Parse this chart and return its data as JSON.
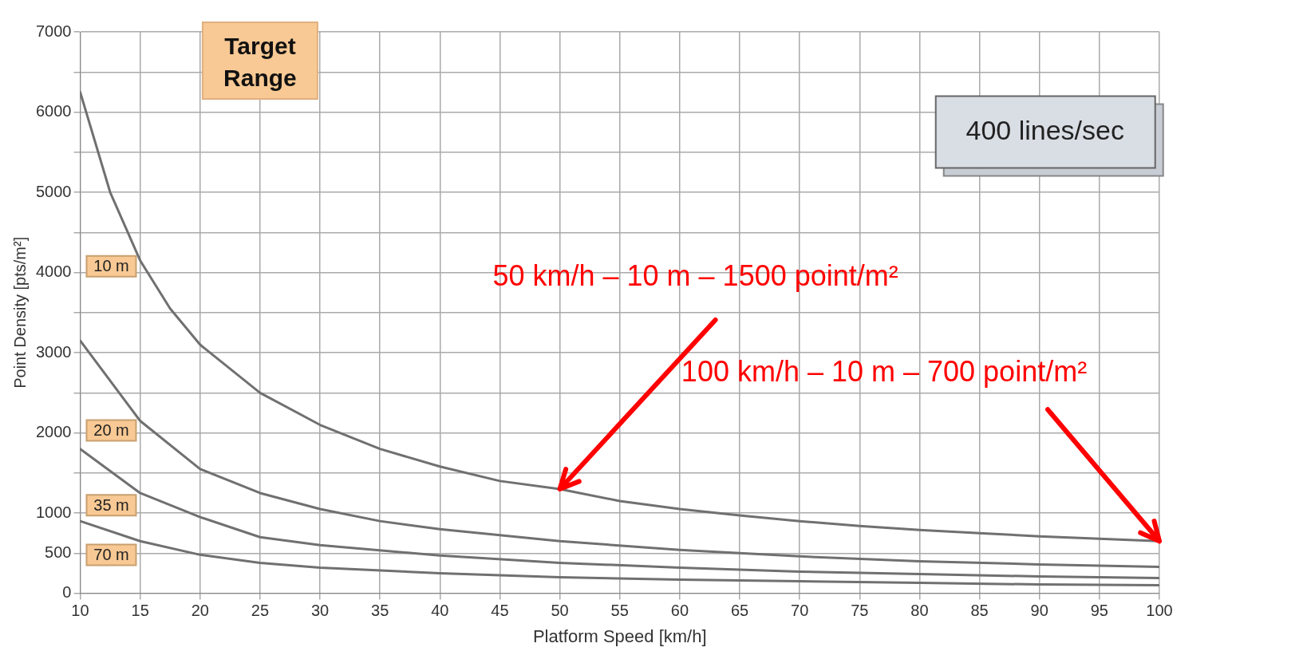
{
  "chart_data": {
    "type": "line",
    "xlabel": "Platform Speed [km/h]",
    "ylabel": "Point Density [pts/m²]",
    "legend_title": "Target Range",
    "xlim": [
      10,
      100
    ],
    "xticks": [
      10,
      15,
      20,
      25,
      30,
      35,
      40,
      45,
      50,
      55,
      60,
      65,
      70,
      75,
      80,
      85,
      90,
      95,
      100
    ],
    "ylim": [
      0,
      7000
    ],
    "yticks": [
      0,
      500,
      1000,
      {
        "value": 1500,
        "label": null
      },
      2000,
      {
        "value": 2500,
        "label": null
      },
      3000,
      {
        "value": 3500,
        "label": null
      },
      4000,
      {
        "value": 4500,
        "label": null
      },
      5000,
      {
        "value": 5500,
        "label": null
      },
      6000,
      {
        "value": 6500,
        "label": null
      },
      7000
    ],
    "grid": true,
    "marker": "none",
    "line_style": "solid",
    "series": [
      {
        "name": "10 m",
        "color": "#707070",
        "x": [
          10,
          12.5,
          15,
          17.5,
          20,
          25,
          30,
          35,
          40,
          45,
          50,
          55,
          60,
          65,
          70,
          75,
          80,
          85,
          90,
          95,
          100
        ],
        "values": [
          6250,
          5000,
          4150,
          3550,
          3100,
          2500,
          2100,
          1800,
          1580,
          1400,
          1300,
          1150,
          1050,
          970,
          900,
          840,
          790,
          750,
          710,
          680,
          650
        ]
      },
      {
        "name": "20 m",
        "color": "#707070",
        "x": [
          10,
          15,
          20,
          25,
          30,
          35,
          40,
          50,
          60,
          70,
          80,
          90,
          100
        ],
        "values": [
          3150,
          2150,
          1550,
          1250,
          1050,
          900,
          800,
          650,
          540,
          460,
          400,
          360,
          330
        ]
      },
      {
        "name": "35 m",
        "color": "#707070",
        "x": [
          10,
          15,
          20,
          25,
          30,
          40,
          50,
          60,
          70,
          80,
          90,
          100
        ],
        "values": [
          1800,
          1250,
          950,
          700,
          600,
          470,
          380,
          320,
          270,
          240,
          210,
          190
        ]
      },
      {
        "name": "70 m",
        "color": "#707070",
        "x": [
          10,
          15,
          20,
          25,
          30,
          40,
          50,
          60,
          70,
          80,
          90,
          100
        ],
        "values": [
          900,
          650,
          480,
          380,
          320,
          250,
          200,
          170,
          150,
          130,
          110,
          100
        ]
      }
    ],
    "annotations": [
      "400 lines/sec",
      {
        "text": "50 km/h – 10 m – 1500 point/m²",
        "x": 50,
        "y": 1300
      },
      {
        "text": "100 km/h – 10 m – 700 point/m²",
        "x": 100,
        "y": 650
      }
    ]
  }
}
